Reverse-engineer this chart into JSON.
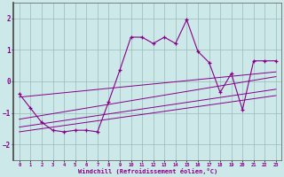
{
  "x": [
    0,
    1,
    2,
    3,
    4,
    5,
    6,
    7,
    8,
    9,
    10,
    11,
    12,
    13,
    14,
    15,
    16,
    17,
    18,
    19,
    20,
    21,
    22,
    23
  ],
  "y_main": [
    -0.4,
    -0.85,
    -1.3,
    -1.55,
    -1.6,
    -1.55,
    -1.55,
    -1.6,
    -0.65,
    0.35,
    1.4,
    1.4,
    1.2,
    1.4,
    1.2,
    1.95,
    0.95,
    0.6,
    -0.35,
    0.25,
    -0.9,
    0.65,
    0.65,
    0.65
  ],
  "line_color": "#880088",
  "bg_color": "#cce8e8",
  "grid_color": "#99bbbb",
  "xlabel": "Windchill (Refroidissement éolien,°C)",
  "ylim": [
    -2.5,
    2.5
  ],
  "xlim": [
    -0.5,
    23.5
  ],
  "yticks": [
    -2,
    -1,
    0,
    1,
    2
  ],
  "xticks": [
    0,
    1,
    2,
    3,
    4,
    5,
    6,
    7,
    8,
    9,
    10,
    11,
    12,
    13,
    14,
    15,
    16,
    17,
    18,
    19,
    20,
    21,
    22,
    23
  ],
  "reg_lines": [
    {
      "x0": 0,
      "y0": -0.5,
      "x1": 23,
      "y1": 0.3
    },
    {
      "x0": 0,
      "y0": -1.2,
      "x1": 23,
      "y1": 0.15
    },
    {
      "x0": 0,
      "y0": -1.45,
      "x1": 23,
      "y1": -0.25
    },
    {
      "x0": 0,
      "y0": -1.6,
      "x1": 23,
      "y1": -0.45
    }
  ]
}
